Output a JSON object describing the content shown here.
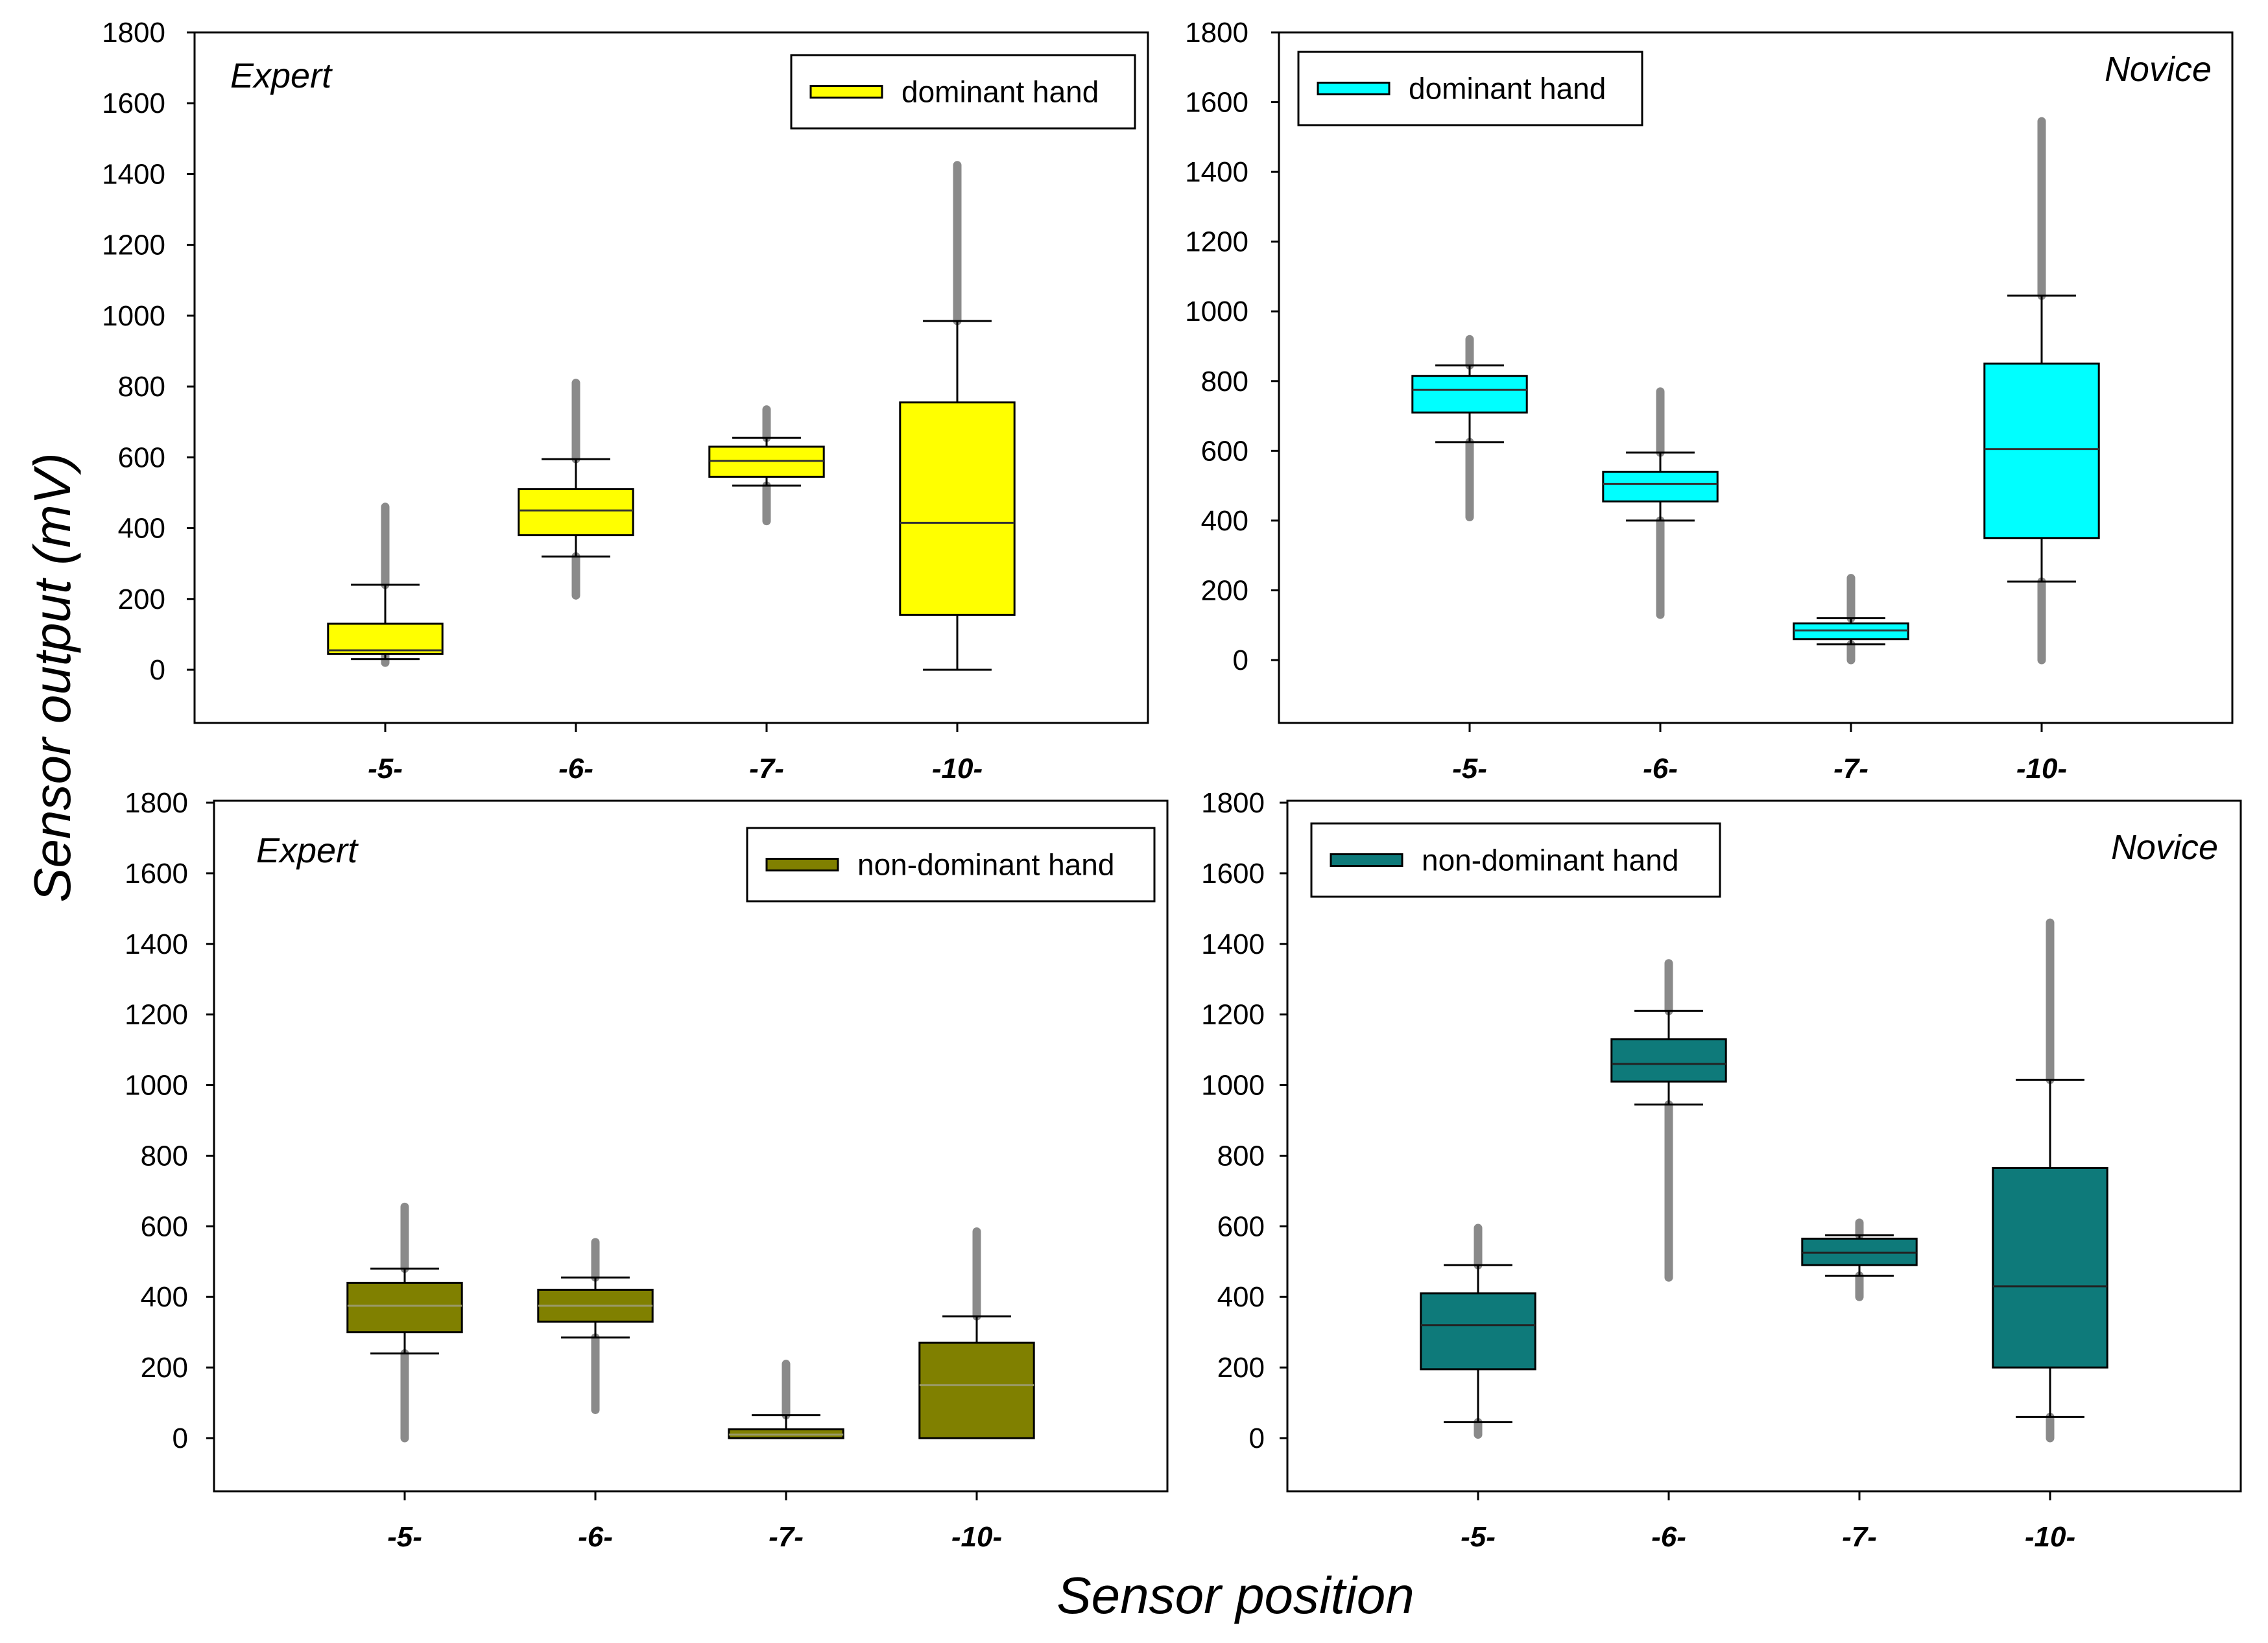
{
  "figure": {
    "ylabel": "Sensor output (mV)",
    "xlabel": "Sensor position"
  },
  "chart_data": [
    {
      "type": "boxplot",
      "panel_label": "Expert",
      "legend": "dominant hand",
      "color": "#FFFF00",
      "median_color": "#333333",
      "categories": [
        "-5-",
        "-6-",
        "-7-",
        "-10-"
      ],
      "yticks": [
        0,
        200,
        400,
        600,
        800,
        1000,
        1200,
        1400,
        1600,
        1800
      ],
      "ylim": [
        -150,
        1800
      ],
      "boxes": [
        {
          "whisker_low": 30,
          "q1": 45,
          "median": 55,
          "q3": 130,
          "whisker_high": 240,
          "outliers_low": [
            20,
            45
          ],
          "outliers_high": [
            240,
            460
          ]
        },
        {
          "whisker_low": 320,
          "q1": 380,
          "median": 450,
          "q3": 510,
          "whisker_high": 595,
          "outliers_low": [
            210,
            320
          ],
          "outliers_high": [
            595,
            810
          ]
        },
        {
          "whisker_low": 520,
          "q1": 545,
          "median": 590,
          "q3": 630,
          "whisker_high": 655,
          "outliers_low": [
            420,
            520
          ],
          "outliers_high": [
            655,
            735
          ]
        },
        {
          "whisker_low": 0,
          "q1": 155,
          "median": 415,
          "q3": 755,
          "whisker_high": 985,
          "outliers_low": [],
          "outliers_high": [
            985,
            1425
          ]
        }
      ]
    },
    {
      "type": "boxplot",
      "panel_label": "Novice",
      "legend": "dominant hand",
      "color": "#00FFFF",
      "median_color": "#333333",
      "categories": [
        "-5-",
        "-6-",
        "-7-",
        "-10-"
      ],
      "yticks": [
        0,
        200,
        400,
        600,
        800,
        1000,
        1200,
        1400,
        1600,
        1800
      ],
      "ylim": [
        -180,
        1800
      ],
      "boxes": [
        {
          "whisker_low": 625,
          "q1": 710,
          "median": 775,
          "q3": 815,
          "whisker_high": 845,
          "outliers_low": [
            410,
            625
          ],
          "outliers_high": [
            845,
            920
          ]
        },
        {
          "whisker_low": 400,
          "q1": 455,
          "median": 505,
          "q3": 540,
          "whisker_high": 595,
          "outliers_low": [
            130,
            400
          ],
          "outliers_high": [
            595,
            770
          ]
        },
        {
          "whisker_low": 45,
          "q1": 60,
          "median": 85,
          "q3": 105,
          "whisker_high": 120,
          "outliers_low": [
            0,
            45
          ],
          "outliers_high": [
            120,
            235
          ]
        },
        {
          "whisker_low": 225,
          "q1": 350,
          "median": 605,
          "q3": 850,
          "whisker_high": 1045,
          "outliers_low": [
            0,
            225
          ],
          "outliers_high": [
            1045,
            1545
          ]
        }
      ]
    },
    {
      "type": "boxplot",
      "panel_label": "Expert",
      "legend": "non-dominant hand",
      "color": "#808000",
      "median_color": "#9a9a6a",
      "categories": [
        "-5-",
        "-6-",
        "-7-",
        "-10-"
      ],
      "yticks": [
        0,
        200,
        400,
        600,
        800,
        1000,
        1200,
        1400,
        1600,
        1800
      ],
      "ylim": [
        -150,
        1800
      ],
      "boxes": [
        {
          "whisker_low": 240,
          "q1": 300,
          "median": 375,
          "q3": 440,
          "whisker_high": 480,
          "outliers_low": [
            0,
            240
          ],
          "outliers_high": [
            480,
            655
          ]
        },
        {
          "whisker_low": 285,
          "q1": 330,
          "median": 375,
          "q3": 420,
          "whisker_high": 455,
          "outliers_low": [
            80,
            285
          ],
          "outliers_high": [
            455,
            555
          ]
        },
        {
          "whisker_low": 0,
          "q1": 0,
          "median": 10,
          "q3": 25,
          "whisker_high": 65,
          "outliers_low": [],
          "outliers_high": [
            65,
            210
          ]
        },
        {
          "whisker_low": 0,
          "q1": 0,
          "median": 150,
          "q3": 270,
          "whisker_high": 345,
          "outliers_low": [],
          "outliers_high": [
            345,
            585
          ]
        }
      ]
    },
    {
      "type": "boxplot",
      "panel_label": "Novice",
      "legend": "non-dominant hand",
      "color": "#0E7A7A",
      "median_color": "#222222",
      "categories": [
        "-5-",
        "-6-",
        "-7-",
        "-10-"
      ],
      "yticks": [
        0,
        200,
        400,
        600,
        800,
        1000,
        1200,
        1400,
        1600,
        1800
      ],
      "ylim": [
        -150,
        1800
      ],
      "boxes": [
        {
          "whisker_low": 45,
          "q1": 195,
          "median": 320,
          "q3": 410,
          "whisker_high": 490,
          "outliers_low": [
            10,
            45
          ],
          "outliers_high": [
            490,
            595
          ]
        },
        {
          "whisker_low": 945,
          "q1": 1010,
          "median": 1060,
          "q3": 1130,
          "whisker_high": 1210,
          "outliers_low": [
            455,
            945
          ],
          "outliers_high": [
            1210,
            1345
          ]
        },
        {
          "whisker_low": 460,
          "q1": 490,
          "median": 525,
          "q3": 565,
          "whisker_high": 575,
          "outliers_low": [
            400,
            460
          ],
          "outliers_high": [
            575,
            610
          ]
        },
        {
          "whisker_low": 60,
          "q1": 200,
          "median": 430,
          "q3": 765,
          "whisker_high": 1015,
          "outliers_low": [
            0,
            60
          ],
          "outliers_high": [
            1015,
            1460
          ]
        }
      ]
    }
  ]
}
